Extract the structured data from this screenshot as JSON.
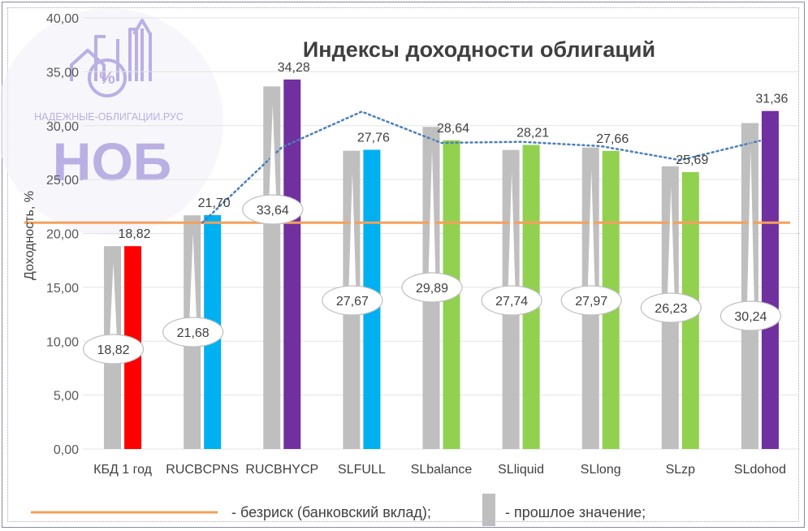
{
  "logo": {
    "site": "НАДЕЖНЫЕ-ОБЛИГАЦИИ.РУС",
    "abbr": "НОБ",
    "glyph": "%",
    "color": "#b3a8e0"
  },
  "chart_data": {
    "type": "bar",
    "title": "Индексы доходности облигаций",
    "ylabel": "Доходность, %",
    "xlabel": "",
    "ylim": [
      0,
      40
    ],
    "yticks": [
      "0,00",
      "5,00",
      "10,00",
      "15,00",
      "20,00",
      "25,00",
      "30,00",
      "35,00",
      "40,00"
    ],
    "grid": true,
    "categories": [
      "КБД 1 год",
      "RUCBCPNS",
      "RUCBHYCP",
      "SLFULL",
      "SLbalance",
      "SLliquid",
      "SLlong",
      "SLzp",
      "SLdohod"
    ],
    "series": [
      {
        "name": "прошлое значение",
        "values": [
          18.82,
          21.68,
          33.64,
          27.67,
          29.89,
          27.74,
          27.97,
          26.23,
          30.24
        ],
        "labels": [
          "18,82",
          "21,68",
          "33,64",
          "27,67",
          "29,89",
          "27,74",
          "27,97",
          "26,23",
          "30,24"
        ],
        "color": "#bfbfbf"
      },
      {
        "name": "",
        "values": [
          18.82,
          21.7,
          34.28,
          27.76,
          28.64,
          28.21,
          27.66,
          25.69,
          31.36
        ],
        "labels": [
          "18,82",
          "21,70",
          "34,28",
          "27,76",
          "28,64",
          "28,21",
          "27,66",
          "25,69",
          "31,36"
        ],
        "colors": [
          "#ff0000",
          "#00b0f0",
          "#7030a0",
          "#00b0f0",
          "#92d050",
          "#92d050",
          "#92d050",
          "#92d050",
          "#7030a0"
        ]
      }
    ],
    "trendline": {
      "style": "dotted",
      "color": "#4a7ebb",
      "values": [
        null,
        21.0,
        28.0,
        31.3,
        28.4,
        28.5,
        28.1,
        26.8,
        28.6
      ]
    },
    "reference_line": {
      "value": 21.0,
      "color": "#f4a05a"
    },
    "legend": {
      "position": "bottom",
      "items": [
        {
          "label": "- безриск (банковский вклад);",
          "color": "#f4a05a",
          "kind": "line"
        },
        {
          "label": "- прошлое значение;",
          "color": "#bfbfbf",
          "kind": "bar"
        }
      ]
    }
  }
}
